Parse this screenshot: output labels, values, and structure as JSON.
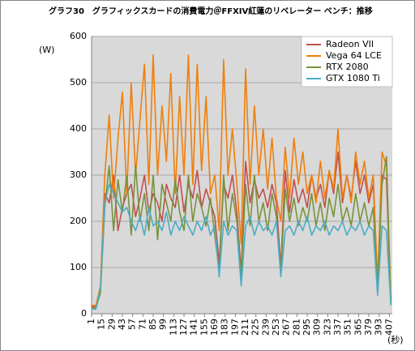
{
  "chart_data": {
    "type": "line",
    "title": "グラフ30　グラフィックスカードの消費電力＠FFXIV紅蓮のリベレーター ベンチ：推移",
    "y_label": "(W)",
    "x_label": "(秒)",
    "x": [
      1,
      7,
      13,
      19,
      25,
      31,
      37,
      43,
      49,
      55,
      61,
      67,
      73,
      79,
      85,
      91,
      97,
      103,
      109,
      115,
      121,
      127,
      133,
      139,
      145,
      151,
      157,
      163,
      169,
      175,
      181,
      187,
      193,
      199,
      205,
      211,
      217,
      223,
      229,
      235,
      241,
      247,
      253,
      259,
      265,
      271,
      277,
      283,
      289,
      295,
      301,
      307,
      313,
      319,
      325,
      331,
      337,
      343,
      349,
      355,
      361,
      367,
      373,
      379,
      385,
      391,
      397,
      403,
      409
    ],
    "xlim": [
      1,
      411
    ],
    "xticks": [
      1,
      15,
      29,
      43,
      57,
      71,
      85,
      99,
      113,
      127,
      141,
      155,
      169,
      183,
      197,
      211,
      225,
      239,
      253,
      267,
      281,
      295,
      309,
      323,
      337,
      351,
      365,
      379,
      393,
      407
    ],
    "ylim": [
      0,
      600
    ],
    "yticks": [
      0,
      100,
      200,
      300,
      400,
      500,
      600
    ],
    "grid": true,
    "legend": "upper right",
    "series": [
      {
        "name": "Radeon VII",
        "color": "#c0504d",
        "values": [
          15,
          15,
          50,
          260,
          240,
          300,
          180,
          230,
          260,
          280,
          210,
          250,
          300,
          220,
          260,
          240,
          200,
          280,
          250,
          230,
          300,
          220,
          280,
          250,
          310,
          230,
          270,
          240,
          210,
          110,
          280,
          250,
          300,
          220,
          90,
          330,
          240,
          290,
          250,
          270,
          230,
          280,
          240,
          100,
          310,
          220,
          290,
          240,
          270,
          230,
          300,
          250,
          280,
          230,
          310,
          260,
          350,
          240,
          300,
          250,
          330,
          260,
          300,
          240,
          280,
          70,
          300,
          290,
          22
        ]
      },
      {
        "name": "Vega 64 LCE",
        "color": "#f07f09",
        "values": [
          18,
          18,
          60,
          300,
          430,
          250,
          380,
          480,
          260,
          500,
          300,
          420,
          540,
          280,
          560,
          300,
          450,
          330,
          520,
          260,
          470,
          300,
          560,
          280,
          540,
          310,
          470,
          260,
          300,
          180,
          550,
          300,
          400,
          280,
          150,
          530,
          280,
          450,
          300,
          400,
          270,
          380,
          250,
          200,
          360,
          250,
          380,
          280,
          350,
          260,
          300,
          240,
          330,
          250,
          310,
          270,
          400,
          250,
          300,
          240,
          350,
          280,
          330,
          250,
          300,
          60,
          350,
          320,
          25
        ]
      },
      {
        "name": "RTX 2080",
        "color": "#77933c",
        "values": [
          12,
          12,
          45,
          230,
          320,
          180,
          290,
          220,
          300,
          170,
          320,
          200,
          260,
          180,
          300,
          160,
          280,
          240,
          200,
          290,
          220,
          180,
          300,
          200,
          260,
          230,
          190,
          250,
          170,
          90,
          300,
          180,
          260,
          200,
          80,
          280,
          190,
          300,
          200,
          240,
          180,
          260,
          210,
          90,
          270,
          200,
          250,
          190,
          230,
          200,
          260,
          190,
          240,
          180,
          250,
          210,
          280,
          200,
          230,
          190,
          260,
          200,
          240,
          190,
          230,
          50,
          280,
          340,
          20
        ]
      },
      {
        "name": "GTX 1080 Ti",
        "color": "#4bacc6",
        "values": [
          10,
          10,
          55,
          240,
          280,
          260,
          240,
          220,
          230,
          200,
          180,
          210,
          170,
          230,
          190,
          200,
          180,
          220,
          170,
          200,
          180,
          210,
          190,
          170,
          200,
          180,
          210,
          170,
          190,
          80,
          200,
          170,
          190,
          180,
          60,
          190,
          210,
          170,
          200,
          180,
          190,
          170,
          200,
          80,
          180,
          190,
          170,
          200,
          180,
          210,
          170,
          190,
          180,
          200,
          170,
          190,
          180,
          200,
          170,
          190,
          180,
          200,
          170,
          190,
          180,
          40,
          190,
          180,
          18
        ]
      }
    ]
  }
}
